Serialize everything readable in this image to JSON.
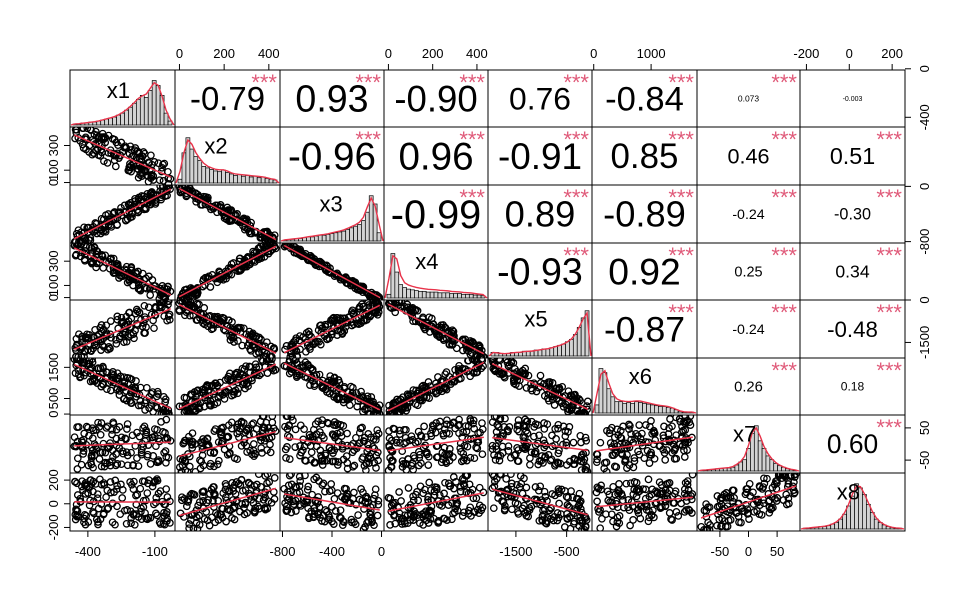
{
  "chart_data": {
    "type": "scatter",
    "title": "",
    "variables": [
      "x1",
      "x2",
      "x3",
      "x4",
      "x5",
      "x6",
      "x7",
      "x8"
    ],
    "correlations": [
      {
        "row": 0,
        "col": 1,
        "r": "-0.79",
        "sig": "***"
      },
      {
        "row": 0,
        "col": 2,
        "r": "0.93",
        "sig": "***"
      },
      {
        "row": 0,
        "col": 3,
        "r": "-0.90",
        "sig": "***"
      },
      {
        "row": 0,
        "col": 4,
        "r": "0.76",
        "sig": "***"
      },
      {
        "row": 0,
        "col": 5,
        "r": "-0.84",
        "sig": "***"
      },
      {
        "row": 0,
        "col": 6,
        "r": "0.073",
        "sig": "***"
      },
      {
        "row": 0,
        "col": 7,
        "r": "-0.003",
        "sig": ""
      },
      {
        "row": 1,
        "col": 2,
        "r": "-0.96",
        "sig": "***"
      },
      {
        "row": 1,
        "col": 3,
        "r": "0.96",
        "sig": "***"
      },
      {
        "row": 1,
        "col": 4,
        "r": "-0.91",
        "sig": "***"
      },
      {
        "row": 1,
        "col": 5,
        "r": "0.85",
        "sig": "***"
      },
      {
        "row": 1,
        "col": 6,
        "r": "0.46",
        "sig": "***"
      },
      {
        "row": 1,
        "col": 7,
        "r": "0.51",
        "sig": "***"
      },
      {
        "row": 2,
        "col": 3,
        "r": "-0.99",
        "sig": "***"
      },
      {
        "row": 2,
        "col": 4,
        "r": "0.89",
        "sig": "***"
      },
      {
        "row": 2,
        "col": 5,
        "r": "-0.89",
        "sig": "***"
      },
      {
        "row": 2,
        "col": 6,
        "r": "-0.24",
        "sig": "***"
      },
      {
        "row": 2,
        "col": 7,
        "r": "-0.30",
        "sig": "***"
      },
      {
        "row": 3,
        "col": 4,
        "r": "-0.93",
        "sig": "***"
      },
      {
        "row": 3,
        "col": 5,
        "r": "0.92",
        "sig": "***"
      },
      {
        "row": 3,
        "col": 6,
        "r": "0.25",
        "sig": "***"
      },
      {
        "row": 3,
        "col": 7,
        "r": "0.34",
        "sig": "***"
      },
      {
        "row": 4,
        "col": 5,
        "r": "-0.87",
        "sig": "***"
      },
      {
        "row": 4,
        "col": 6,
        "r": "-0.24",
        "sig": "***"
      },
      {
        "row": 4,
        "col": 7,
        "r": "-0.48",
        "sig": "***"
      },
      {
        "row": 5,
        "col": 6,
        "r": "0.26",
        "sig": "***"
      },
      {
        "row": 5,
        "col": 7,
        "r": "0.18",
        "sig": "***"
      },
      {
        "row": 6,
        "col": 7,
        "r": "0.60",
        "sig": "***"
      }
    ],
    "ranges": {
      "x1": [
        -480,
        -10
      ],
      "x2": [
        -20,
        450
      ],
      "x3": [
        -820,
        20
      ],
      "x4": [
        -20,
        450
      ],
      "x5": [
        -2050,
        0
      ],
      "x6": [
        -30,
        1800
      ],
      "x7": [
        -90,
        90
      ],
      "x8": [
        -230,
        260
      ]
    },
    "histograms": {
      "x1": [
        1,
        1,
        2,
        2,
        3,
        3,
        4,
        5,
        6,
        7,
        8,
        10,
        12,
        15,
        18,
        22,
        26,
        30,
        28,
        35,
        45,
        40,
        30,
        12,
        4
      ],
      "x2": [
        5,
        40,
        60,
        45,
        35,
        30,
        22,
        20,
        18,
        16,
        15,
        17,
        14,
        12,
        10,
        11,
        9,
        10,
        8,
        9,
        7,
        8,
        6,
        5,
        4
      ],
      "x3": [
        1,
        2,
        2,
        3,
        3,
        4,
        5,
        5,
        6,
        7,
        7,
        8,
        9,
        10,
        11,
        12,
        14,
        16,
        18,
        20,
        25,
        35,
        55,
        45,
        10
      ],
      "x4": [
        5,
        60,
        35,
        18,
        14,
        12,
        11,
        10,
        9,
        9,
        8,
        8,
        8,
        7,
        7,
        7,
        6,
        6,
        6,
        5,
        5,
        5,
        4,
        4,
        3
      ],
      "x5": [
        3,
        3,
        2,
        2,
        2,
        3,
        3,
        3,
        4,
        4,
        4,
        5,
        5,
        6,
        6,
        7,
        8,
        9,
        10,
        12,
        14,
        18,
        24,
        32,
        38
      ],
      "x6": [
        10,
        55,
        50,
        30,
        20,
        14,
        14,
        12,
        13,
        12,
        14,
        13,
        12,
        11,
        10,
        9,
        8,
        8,
        7,
        6,
        4,
        2,
        1,
        1,
        1
      ],
      "x7": [
        1,
        1,
        2,
        2,
        3,
        3,
        4,
        4,
        5,
        8,
        12,
        15,
        30,
        50,
        60,
        40,
        30,
        20,
        15,
        10,
        7,
        5,
        3,
        2,
        1
      ],
      "x8": [
        1,
        1,
        2,
        2,
        3,
        3,
        4,
        6,
        8,
        12,
        18,
        28,
        40,
        55,
        50,
        42,
        30,
        20,
        12,
        8,
        5,
        3,
        2,
        1,
        1
      ]
    },
    "axes": {
      "top": [
        {
          "col": 1,
          "ticks": [
            0,
            200,
            400
          ],
          "labels": [
            "0",
            "200",
            "400"
          ]
        },
        {
          "col": 3,
          "ticks": [
            0,
            200,
            400
          ],
          "labels": [
            "0",
            "200",
            "400"
          ]
        },
        {
          "col": 5,
          "ticks": [
            0,
            1000
          ],
          "labels": [
            "0",
            "1000"
          ]
        },
        {
          "col": 7,
          "ticks": [
            -200,
            0,
            200
          ],
          "labels": [
            "-200",
            "0",
            "200"
          ]
        }
      ],
      "bottom": [
        {
          "col": 0,
          "ticks": [
            -400,
            -100
          ],
          "labels": [
            "-400",
            "-100"
          ]
        },
        {
          "col": 2,
          "ticks": [
            -800,
            -400,
            0
          ],
          "labels": [
            "-800",
            "-400",
            "0"
          ]
        },
        {
          "col": 4,
          "ticks": [
            -1500,
            -500
          ],
          "labels": [
            "-1500",
            "-500"
          ]
        },
        {
          "col": 6,
          "ticks": [
            -50,
            0,
            50
          ],
          "labels": [
            "-50",
            "0",
            "50"
          ]
        }
      ],
      "left": [
        {
          "row": 1,
          "ticks": [
            0,
            100,
            300
          ],
          "labels": [
            "0",
            "100",
            "300"
          ]
        },
        {
          "row": 3,
          "ticks": [
            0,
            100,
            300
          ],
          "labels": [
            "0",
            "100",
            "300"
          ]
        },
        {
          "row": 5,
          "ticks": [
            0,
            500,
            1500
          ],
          "labels": [
            "0",
            "500",
            "1500"
          ]
        },
        {
          "row": 7,
          "ticks": [
            -200,
            0,
            200
          ],
          "labels": [
            "-200",
            "0",
            "200"
          ]
        }
      ],
      "right": [
        {
          "row": 0,
          "ticks": [
            -400,
            0
          ],
          "labels": [
            "-400",
            "0"
          ]
        },
        {
          "row": 2,
          "ticks": [
            -800,
            0
          ],
          "labels": [
            "-800",
            "0"
          ]
        },
        {
          "row": 4,
          "ticks": [
            -1500,
            0
          ],
          "labels": [
            "-1500",
            "0"
          ]
        },
        {
          "row": 6,
          "ticks": [
            -50,
            50
          ],
          "labels": [
            "-50",
            "50"
          ]
        }
      ]
    },
    "grid": false,
    "colors": {
      "significance": "#e05b7a",
      "smooth": "#e8334a",
      "points": "#000000",
      "bars": "#d3d3d3"
    }
  }
}
